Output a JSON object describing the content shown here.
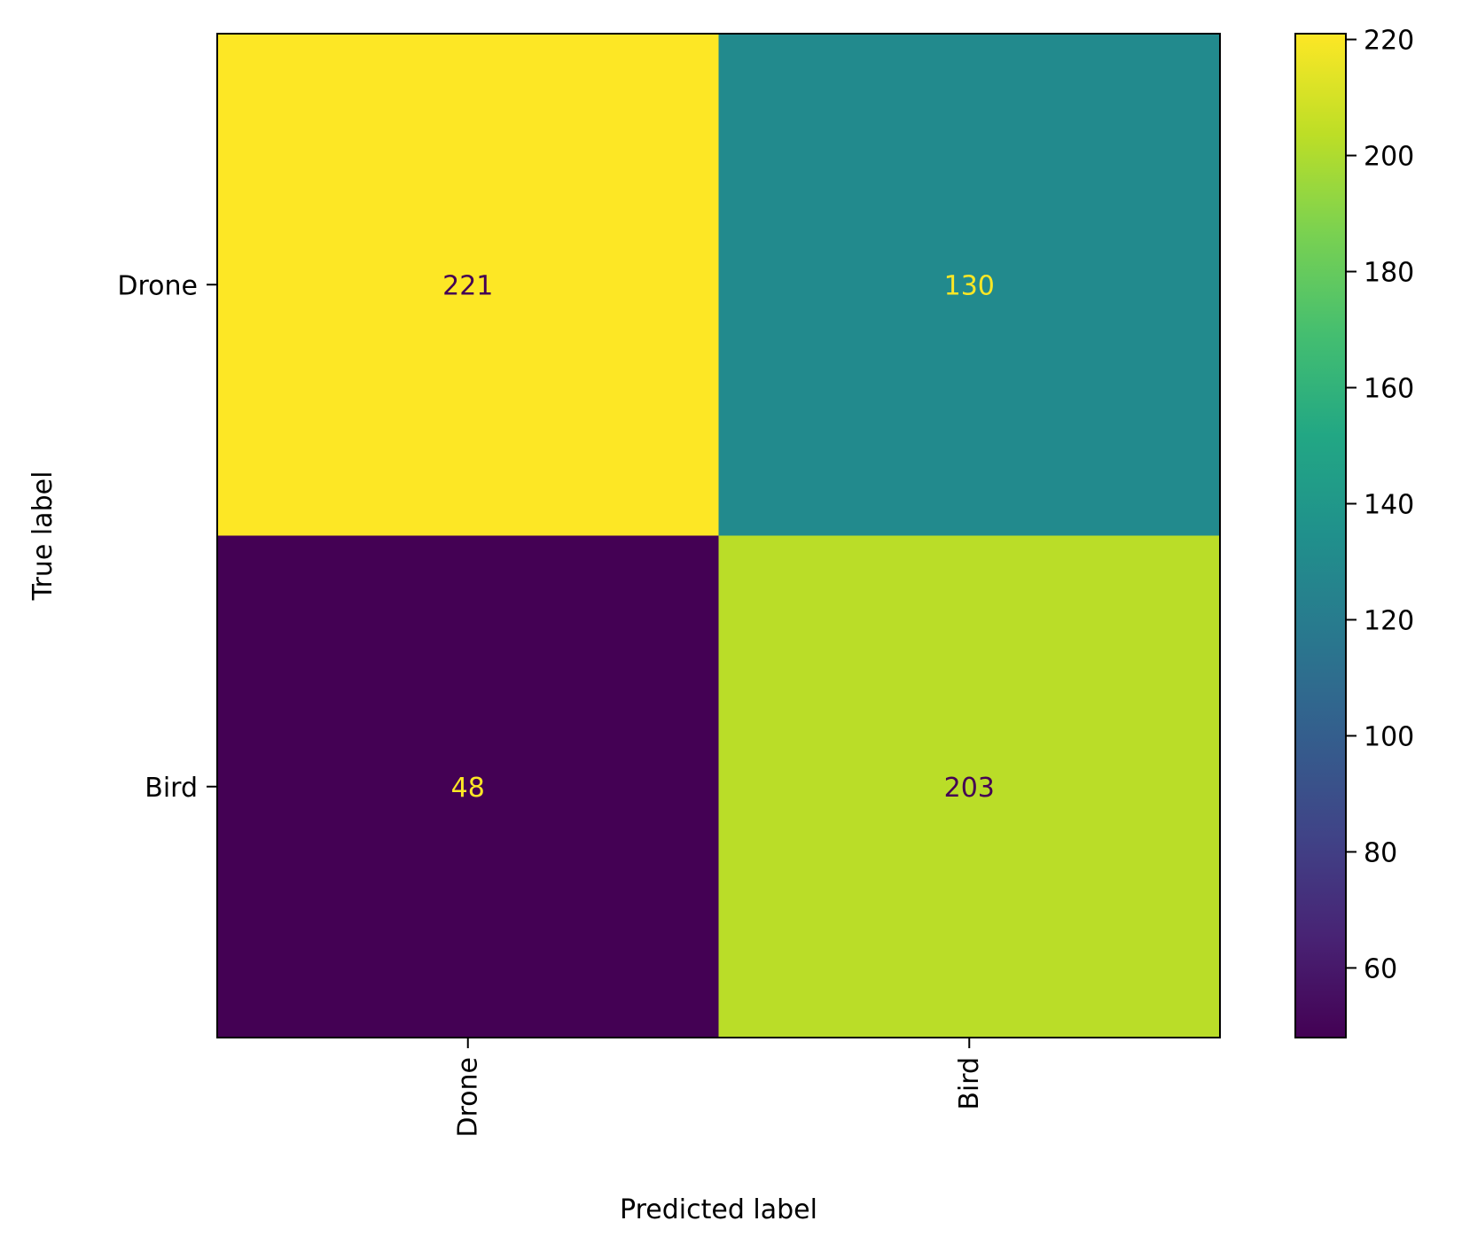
{
  "chart_data": {
    "type": "heatmap",
    "title": "",
    "xlabel": "Predicted label",
    "ylabel": "True label",
    "x_categories": [
      "Drone",
      "Bird"
    ],
    "y_categories": [
      "Drone",
      "Bird"
    ],
    "values": [
      [
        221,
        130
      ],
      [
        48,
        203
      ]
    ],
    "colormap": "viridis",
    "colorbar": {
      "range": [
        48,
        221
      ],
      "ticks": [
        60,
        80,
        100,
        120,
        140,
        160,
        180,
        200,
        220
      ]
    },
    "annotation_colors": {
      "on_light": "#440154",
      "on_dark": "#fde725"
    },
    "xtick_rotation": "vertical",
    "grid": false
  }
}
